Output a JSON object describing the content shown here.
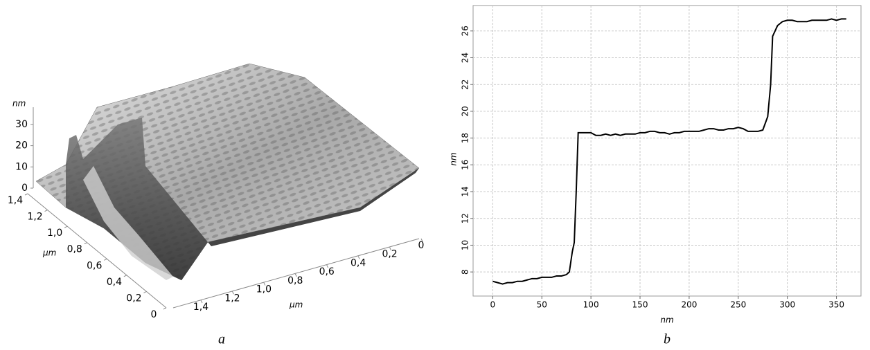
{
  "chart_data": [
    {
      "type": "surface3d",
      "caption": "a",
      "z_label": "nm",
      "zticks": [
        0,
        10,
        20,
        30
      ],
      "y_label": "μm",
      "yticks": [
        {
          "value": 1.4,
          "label": "1,4"
        },
        {
          "value": 1.2,
          "label": "1,2"
        },
        {
          "value": 1.0,
          "label": "1,0"
        },
        {
          "value": 0.8,
          "label": "0,8"
        },
        {
          "value": 0.6,
          "label": "0,6"
        },
        {
          "value": 0.4,
          "label": "0,4"
        },
        {
          "value": 0.2,
          "label": "0,2"
        },
        0
      ],
      "x_label": "μm",
      "xticks": [
        {
          "value": 1.4,
          "label": "1,4"
        },
        {
          "value": 1.2,
          "label": "1,2"
        },
        {
          "value": 1.0,
          "label": "1,0"
        },
        {
          "value": 0.8,
          "label": "0,8"
        },
        {
          "value": 0.6,
          "label": "0,6"
        },
        {
          "value": 0.4,
          "label": "0,4"
        },
        {
          "value": 0.2,
          "label": "0,2"
        },
        0
      ]
    },
    {
      "type": "line",
      "caption": "b",
      "x_label": "nm",
      "y_label": "nm",
      "color": "#000000",
      "grid": true,
      "xlim": [
        -20,
        375
      ],
      "xticks": [
        0,
        50,
        100,
        150,
        200,
        250,
        300,
        350
      ],
      "ylim": [
        6.2,
        27.9
      ],
      "yticks": [
        8,
        10,
        12,
        14,
        16,
        18,
        20,
        22,
        24,
        26
      ],
      "x": [
        0,
        5,
        10,
        15,
        20,
        25,
        30,
        35,
        40,
        45,
        50,
        55,
        60,
        65,
        70,
        75,
        78,
        81,
        83,
        85,
        87,
        90,
        95,
        100,
        105,
        110,
        115,
        120,
        125,
        130,
        135,
        140,
        145,
        150,
        155,
        160,
        165,
        170,
        175,
        180,
        185,
        190,
        195,
        200,
        205,
        210,
        215,
        220,
        225,
        230,
        235,
        240,
        245,
        250,
        255,
        260,
        265,
        270,
        275,
        280,
        283,
        285,
        290,
        295,
        300,
        305,
        310,
        315,
        320,
        325,
        330,
        335,
        340,
        345,
        350,
        355,
        360
      ],
      "values": [
        7.3,
        7.2,
        7.1,
        7.2,
        7.2,
        7.3,
        7.3,
        7.4,
        7.5,
        7.5,
        7.6,
        7.6,
        7.6,
        7.7,
        7.7,
        7.8,
        8.0,
        9.5,
        10.2,
        14,
        18.4,
        18.4,
        18.4,
        18.4,
        18.2,
        18.2,
        18.3,
        18.2,
        18.3,
        18.2,
        18.3,
        18.3,
        18.3,
        18.4,
        18.4,
        18.5,
        18.5,
        18.4,
        18.4,
        18.3,
        18.4,
        18.4,
        18.5,
        18.5,
        18.5,
        18.5,
        18.6,
        18.7,
        18.7,
        18.6,
        18.6,
        18.7,
        18.7,
        18.8,
        18.7,
        18.5,
        18.5,
        18.5,
        18.6,
        19.6,
        22,
        25.6,
        26.4,
        26.7,
        26.8,
        26.8,
        26.7,
        26.7,
        26.7,
        26.8,
        26.8,
        26.8,
        26.8,
        26.9,
        26.8,
        26.9,
        26.9
      ]
    }
  ]
}
